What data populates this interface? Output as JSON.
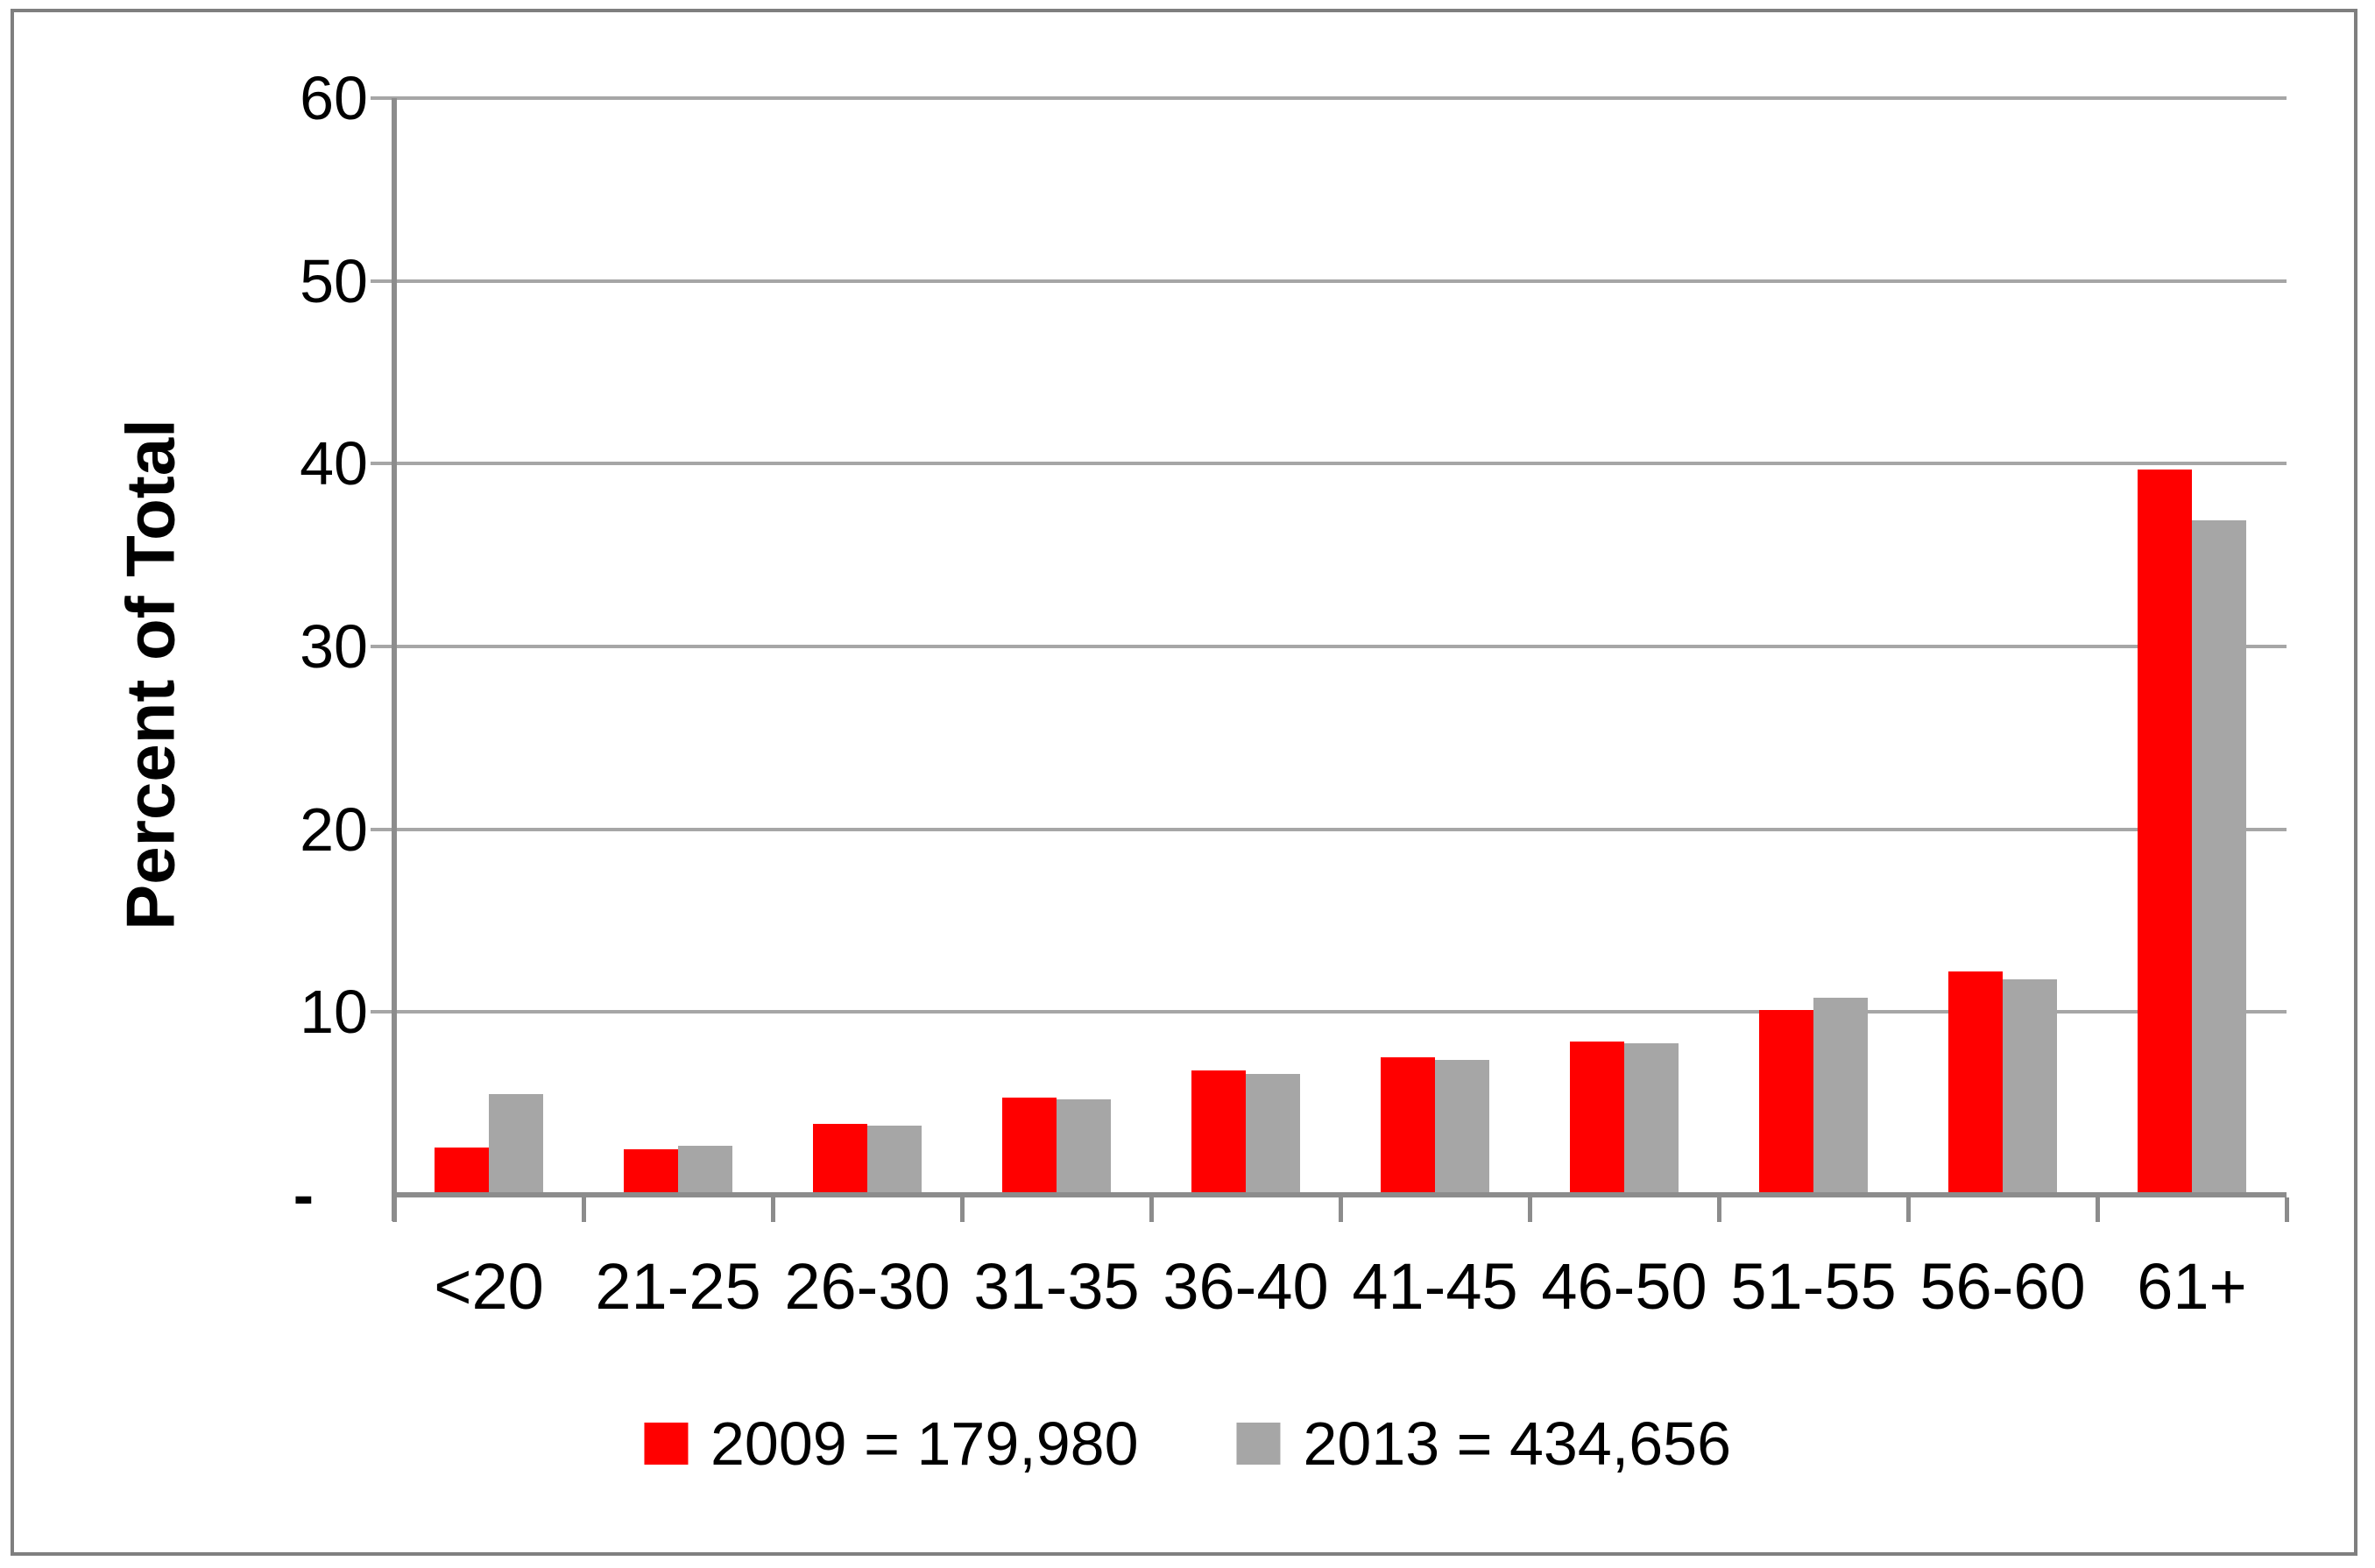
{
  "chart_data": {
    "type": "bar",
    "title": "",
    "xlabel": "",
    "ylabel": "Percent of Total",
    "ylim": [
      0,
      60
    ],
    "grid": "horizontal",
    "legend_position": "bottom-center",
    "yticks": [
      {
        "value": 60,
        "label": "60"
      },
      {
        "value": 50,
        "label": "50"
      },
      {
        "value": 40,
        "label": "40"
      },
      {
        "value": 30,
        "label": "30"
      },
      {
        "value": 20,
        "label": "20"
      },
      {
        "value": 10,
        "label": "10"
      }
    ],
    "zero_label": "-",
    "categories": [
      "<20",
      "21-25",
      "26-30",
      "31-35",
      "36-40",
      "41-45",
      "46-50",
      "51-55",
      "56-60",
      "61+"
    ],
    "series": [
      {
        "name": "2009",
        "legend_label": "2009 = 179,980",
        "color": "#FF0000",
        "values": [
          2.6,
          2.5,
          3.9,
          5.3,
          6.8,
          7.5,
          8.4,
          10.1,
          12.2,
          39.7
        ]
      },
      {
        "name": "2013",
        "legend_label": "2013 = 434,656",
        "color": "#A6A6A6",
        "values": [
          5.5,
          2.7,
          3.8,
          5.2,
          6.6,
          7.4,
          8.3,
          10.8,
          11.8,
          36.9
        ]
      }
    ]
  },
  "colors": {
    "bar_2009": "#FF0000",
    "bar_2013": "#A6A6A6",
    "gridline": "#A6A6A6",
    "axis": "#8C8C8C",
    "border": "#7F7F7F",
    "text": "#000000"
  }
}
